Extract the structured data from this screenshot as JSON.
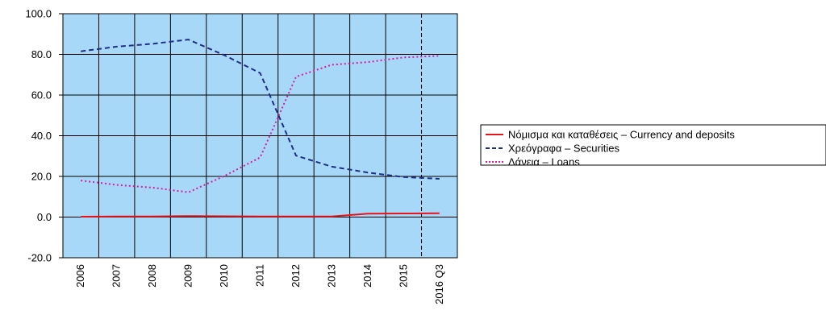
{
  "chart_data": {
    "type": "line",
    "title": "",
    "xlabel": "",
    "ylabel": "",
    "categories": [
      "2006",
      "2007",
      "2008",
      "2009",
      "2010",
      "2011",
      "2012",
      "2013",
      "2014",
      "2015",
      "2016 Q3"
    ],
    "ylim": [
      -20,
      100
    ],
    "yticks": [
      "100.0",
      "80.0",
      "60.0",
      "40.0",
      "20.0",
      "0.0",
      "-20.0"
    ],
    "ytick_values": [
      100,
      80,
      60,
      40,
      20,
      0,
      -20
    ],
    "grid": true,
    "plot_background": "#a8d8f8",
    "vertical_marker_between": [
      "2015",
      "2016 Q3"
    ],
    "legend_position": "right",
    "series": [
      {
        "name": "Νόμισμα και καταθέσεις – Currency and deposits",
        "color": "#e8141c",
        "style": "solid",
        "values": [
          0.2,
          0.3,
          0.3,
          0.5,
          0.4,
          0.3,
          0.3,
          0.3,
          1.7,
          1.8,
          1.9
        ]
      },
      {
        "name": "Χρεόγραφα – Securities",
        "color": "#1f2f86",
        "style": "dashed",
        "values": [
          81.5,
          83.8,
          85.2,
          87.3,
          79.6,
          70.8,
          30.2,
          24.8,
          21.9,
          19.7,
          18.8
        ]
      },
      {
        "name": "Δάνεια – Loans",
        "color": "#d81ea0",
        "style": "dotted",
        "values": [
          18.0,
          15.8,
          14.5,
          12.2,
          20.2,
          29.3,
          69.0,
          74.9,
          76.2,
          78.5,
          79.3
        ]
      }
    ]
  }
}
